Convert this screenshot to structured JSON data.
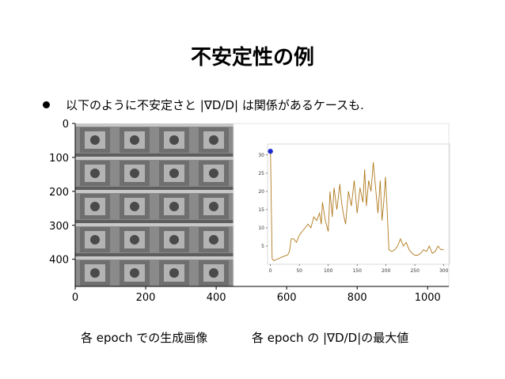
{
  "slide": {
    "title": "不安定性の例",
    "bullet": "以下のように不安定さと |∇D/D| は関係があるケースも.",
    "caption_left": "各 epoch での生成画像",
    "caption_right": "各 epoch の |∇D/D|の最大値"
  },
  "colors": {
    "series": "#b07a1e",
    "marker": "#1f2bd0"
  },
  "chart_data": [
    {
      "type": "image",
      "x_ticks": [
        "0",
        "200",
        "400",
        "600",
        "800",
        "1000"
      ],
      "y_ticks": [
        "0",
        "100",
        "200",
        "300",
        "400"
      ],
      "xlim": [
        0,
        1060
      ],
      "ylim": [
        480,
        0
      ]
    },
    {
      "type": "line",
      "x_ticks": [
        "0",
        "50",
        "100",
        "150",
        "200",
        "250",
        "300"
      ],
      "y_ticks": [
        "5",
        "10",
        "15",
        "20",
        "25",
        "30"
      ],
      "xlim": [
        -5,
        310
      ],
      "ylim": [
        0,
        33
      ],
      "series": [
        {
          "x": [
            0,
            3,
            6,
            10,
            15,
            20,
            25,
            30,
            33,
            36,
            40,
            45,
            50,
            55,
            60,
            65,
            70,
            75,
            80,
            85,
            88,
            90,
            95,
            100,
            103,
            107,
            110,
            115,
            120,
            123,
            126,
            130,
            135,
            140,
            145,
            150,
            155,
            160,
            163,
            166,
            170,
            174,
            178,
            182,
            186,
            190,
            193,
            196,
            199,
            202,
            205,
            210,
            215,
            220,
            225,
            230,
            235,
            240,
            245,
            250,
            255,
            260,
            265,
            270,
            275,
            280,
            285,
            290,
            295,
            300
          ],
          "y": [
            31,
            1.5,
            1,
            1.3,
            1.6,
            2,
            2.3,
            2.6,
            3.5,
            7,
            7,
            6,
            8,
            9,
            10,
            11,
            10,
            13,
            12,
            14,
            11,
            17,
            12,
            9,
            20,
            13,
            21,
            15,
            22,
            17,
            14,
            11,
            20,
            16,
            23,
            14,
            21,
            17,
            26,
            16,
            23,
            20,
            28,
            21,
            14,
            23,
            12,
            17,
            24,
            15,
            4,
            3.5,
            4,
            5,
            7,
            5,
            6,
            4,
            3,
            2.5,
            2.5,
            3,
            4,
            3.5,
            5,
            3,
            3.5,
            5,
            4,
            4
          ]
        }
      ],
      "highlight_point": {
        "x": 0,
        "y": 31
      }
    }
  ]
}
